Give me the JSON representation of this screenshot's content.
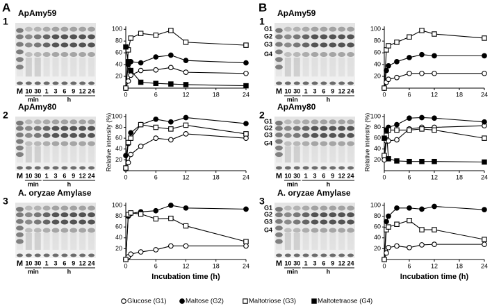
{
  "panel_labels": [
    "A",
    "B"
  ],
  "legend": [
    {
      "name": "Glucose (G1)",
      "marker": "circle-open"
    },
    {
      "name": "Maltose (G2)",
      "marker": "circle-filled"
    },
    {
      "name": "Maltotriose (G3)",
      "marker": "square-open"
    },
    {
      "name": "Maltotetraose (G4)",
      "marker": "square-filled"
    }
  ],
  "gels": [
    {
      "row": "1",
      "title": "ApAmy59",
      "lanes": [
        "M",
        "10",
        "30",
        "1",
        "3",
        "6",
        "9",
        "12",
        "24"
      ],
      "units": [
        "min",
        "h"
      ]
    },
    {
      "row": "2",
      "title": "ApAmy80",
      "lanes": [
        "M",
        "10",
        "30",
        "1",
        "3",
        "6",
        "9",
        "12",
        "24"
      ],
      "units": [
        "min",
        "h"
      ]
    },
    {
      "row": "3",
      "title": "A. oryzae Amylase",
      "lanes": [
        "M",
        "10",
        "30",
        "1",
        "3",
        "6",
        "9",
        "12",
        "24"
      ],
      "units": [
        "min",
        "h"
      ]
    },
    {
      "row": "1",
      "title": "ApAmy59",
      "bands": [
        "G1",
        "G2",
        "G3",
        "G4"
      ],
      "lanes": [
        "M",
        "10",
        "30",
        "1",
        "3",
        "6",
        "9",
        "12",
        "24"
      ],
      "units": [
        "min",
        "h"
      ]
    },
    {
      "row": "2",
      "title": "ApAmy80",
      "bands": [
        "G1",
        "G2",
        "G3",
        "G4"
      ],
      "lanes": [
        "M",
        "10",
        "30",
        "1",
        "3",
        "6",
        "9",
        "12",
        "24"
      ],
      "units": [
        "min",
        "h"
      ]
    },
    {
      "row": "3",
      "title": "A. oryzae Amylase",
      "bands": [
        "G1",
        "G2",
        "G3",
        "G4"
      ],
      "lanes": [
        "M",
        "10",
        "30",
        "1",
        "3",
        "6",
        "9",
        "12",
        "24"
      ],
      "units": [
        "min",
        "h"
      ]
    }
  ],
  "chart_data": [
    {
      "type": "line",
      "x": [
        0,
        0.5,
        1,
        3,
        6,
        9,
        12,
        24
      ],
      "xlim": [
        0,
        24
      ],
      "xticks": [
        0,
        6,
        12,
        18,
        24
      ],
      "ylim": [
        0,
        105
      ],
      "yticks": [
        20,
        40,
        60,
        80,
        100
      ],
      "series": [
        {
          "marker": "circle-open",
          "values": [
            0,
            12,
            22,
            30,
            31,
            35,
            27,
            25
          ]
        },
        {
          "marker": "circle-filled",
          "values": [
            0,
            40,
            45,
            43,
            53,
            56,
            47,
            43
          ]
        },
        {
          "marker": "square-open",
          "values": [
            0,
            65,
            85,
            93,
            90,
            98,
            78,
            73
          ]
        },
        {
          "marker": "square-filled",
          "values": [
            70,
            45,
            30,
            10,
            8,
            7,
            6,
            4
          ]
        }
      ]
    },
    {
      "type": "line",
      "ylabel": "Relative intensity (%)",
      "x": [
        0,
        0.5,
        1,
        3,
        6,
        9,
        12,
        24
      ],
      "xlim": [
        0,
        24
      ],
      "xticks": [
        0,
        6,
        12,
        18,
        24
      ],
      "ylim": [
        0,
        105
      ],
      "yticks": [
        20,
        40,
        60,
        80,
        100
      ],
      "series": [
        {
          "marker": "circle-open",
          "values": [
            3,
            15,
            30,
            45,
            60,
            57,
            68,
            60
          ]
        },
        {
          "marker": "circle-filled",
          "values": [
            28,
            50,
            70,
            85,
            95,
            90,
            98,
            87
          ]
        },
        {
          "marker": "square-open",
          "values": [
            5,
            52,
            60,
            85,
            80,
            77,
            84,
            68
          ]
        }
      ]
    },
    {
      "type": "line",
      "xlabel": "Incubation time (h)",
      "x": [
        0,
        0.5,
        1,
        3,
        6,
        9,
        12,
        24
      ],
      "xlim": [
        0,
        24
      ],
      "xticks": [
        0,
        6,
        12,
        18,
        24
      ],
      "ylim": [
        0,
        105
      ],
      "yticks": [
        20,
        40,
        60,
        80,
        100
      ],
      "series": [
        {
          "marker": "circle-open",
          "values": [
            0,
            5,
            10,
            14,
            18,
            25,
            25,
            25
          ]
        },
        {
          "marker": "circle-filled",
          "values": [
            0,
            80,
            85,
            88,
            90,
            100,
            95,
            93
          ]
        },
        {
          "marker": "square-open",
          "values": [
            0,
            83,
            86,
            84,
            75,
            76,
            62,
            33
          ]
        }
      ]
    },
    {
      "type": "line",
      "x": [
        0,
        0.5,
        1,
        3,
        6,
        9,
        12,
        24
      ],
      "xlim": [
        0,
        24
      ],
      "xticks": [
        0,
        6,
        12,
        18,
        24
      ],
      "ylim": [
        0,
        105
      ],
      "yticks": [
        20,
        40,
        60,
        80,
        100
      ],
      "series": [
        {
          "marker": "circle-open",
          "values": [
            0,
            10,
            15,
            18,
            25,
            25,
            25,
            25
          ]
        },
        {
          "marker": "circle-filled",
          "values": [
            0,
            30,
            38,
            45,
            52,
            57,
            55,
            55
          ]
        },
        {
          "marker": "square-open",
          "values": [
            0,
            65,
            72,
            78,
            87,
            98,
            92,
            85
          ]
        }
      ]
    },
    {
      "type": "line",
      "ylabel": "Relative intensity (%)",
      "x": [
        0,
        0.5,
        1,
        3,
        6,
        9,
        12,
        24
      ],
      "xlim": [
        0,
        24
      ],
      "xticks": [
        0,
        6,
        12,
        18,
        24
      ],
      "ylim": [
        0,
        105
      ],
      "yticks": [
        20,
        40,
        60,
        80,
        100
      ],
      "series": [
        {
          "marker": "circle-open",
          "values": [
            20,
            55,
            55,
            57,
            77,
            80,
            80,
            83
          ]
        },
        {
          "marker": "circle-filled",
          "values": [
            28,
            65,
            80,
            85,
            97,
            98,
            97,
            90
          ]
        },
        {
          "marker": "square-open",
          "values": [
            28,
            65,
            75,
            75,
            75,
            77,
            75,
            60
          ]
        },
        {
          "marker": "square-filled",
          "values": [
            60,
            75,
            22,
            18,
            17,
            17,
            17,
            16
          ]
        }
      ]
    },
    {
      "type": "line",
      "xlabel": "Incubation time (h)",
      "x": [
        0,
        0.5,
        1,
        3,
        6,
        9,
        12,
        24
      ],
      "xlim": [
        0,
        24
      ],
      "xticks": [
        0,
        6,
        12,
        18,
        24
      ],
      "ylim": [
        0,
        105
      ],
      "yticks": [
        20,
        40,
        60,
        80,
        100
      ],
      "series": [
        {
          "marker": "circle-open",
          "values": [
            0,
            12,
            22,
            25,
            22,
            27,
            28,
            28
          ]
        },
        {
          "marker": "circle-filled",
          "values": [
            0,
            70,
            80,
            95,
            95,
            93,
            98,
            92
          ]
        },
        {
          "marker": "square-open",
          "values": [
            0,
            55,
            60,
            65,
            72,
            55,
            55,
            37
          ]
        }
      ]
    }
  ]
}
